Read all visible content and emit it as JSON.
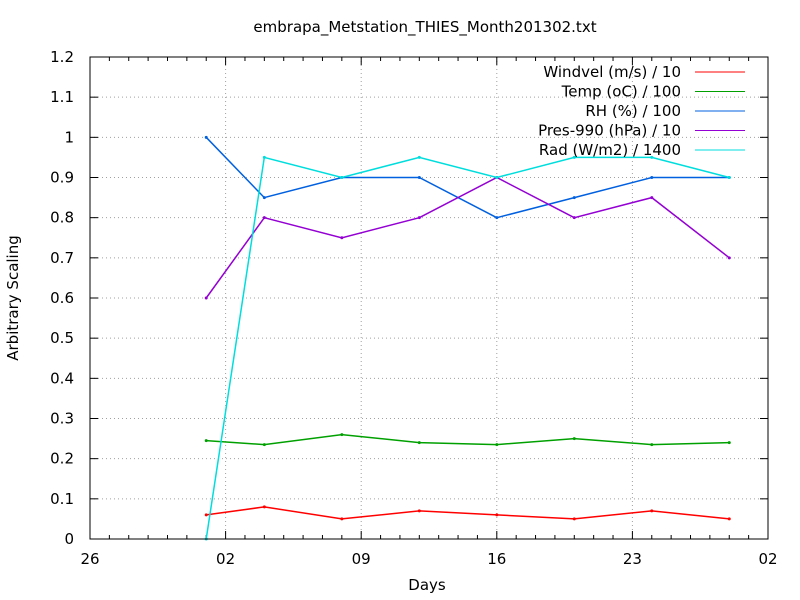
{
  "chart_data": {
    "type": "line",
    "title": "embrapa_Metstation_THIES_Month201302.txt",
    "xlabel": "Days",
    "ylabel": "Arbitrary Scaling",
    "xlim": [
      "2013-01-26",
      "2013-03-02"
    ],
    "ylim": [
      0,
      1.2
    ],
    "x_ticks": [
      "26",
      "02",
      "09",
      "16",
      "23",
      "02"
    ],
    "y_ticks": [
      "0",
      "0.1",
      "0.2",
      "0.3",
      "0.4",
      "0.5",
      "0.6",
      "0.7",
      "0.8",
      "0.9",
      "1",
      "1.1",
      "1.2"
    ],
    "grid": true,
    "legend_position": "top-right",
    "series": [
      {
        "name": "Windvel (m/s) / 10",
        "color": "#ff0000",
        "x": [
          "2013-02-01",
          "2013-02-04",
          "2013-02-08",
          "2013-02-12",
          "2013-02-16",
          "2013-02-20",
          "2013-02-24",
          "2013-02-28"
        ],
        "values": [
          0.06,
          0.08,
          0.05,
          0.07,
          0.06,
          0.05,
          0.07,
          0.05
        ]
      },
      {
        "name": "Temp (oC) / 100",
        "color": "#00a000",
        "x": [
          "2013-02-01",
          "2013-02-04",
          "2013-02-08",
          "2013-02-12",
          "2013-02-16",
          "2013-02-20",
          "2013-02-24",
          "2013-02-28"
        ],
        "values": [
          0.245,
          0.235,
          0.26,
          0.24,
          0.235,
          0.25,
          0.235,
          0.24
        ]
      },
      {
        "name": "RH (%) / 100",
        "color": "#0060e0",
        "x": [
          "2013-02-01",
          "2013-02-04",
          "2013-02-08",
          "2013-02-12",
          "2013-02-16",
          "2013-02-20",
          "2013-02-24",
          "2013-02-28"
        ],
        "values": [
          1.0,
          0.85,
          0.9,
          0.9,
          0.8,
          0.85,
          0.9,
          0.9
        ]
      },
      {
        "name": "Pres-990 (hPa) / 10",
        "color": "#9400d3",
        "x": [
          "2013-02-01",
          "2013-02-04",
          "2013-02-08",
          "2013-02-12",
          "2013-02-16",
          "2013-02-20",
          "2013-02-24",
          "2013-02-28"
        ],
        "values": [
          0.6,
          0.8,
          0.75,
          0.8,
          0.9,
          0.8,
          0.85,
          0.7
        ]
      },
      {
        "name": "Rad (W/m2) / 1400",
        "color": "#00dddd",
        "x": [
          "2013-02-01",
          "2013-02-04",
          "2013-02-08",
          "2013-02-12",
          "2013-02-16",
          "2013-02-20",
          "2013-02-24",
          "2013-02-28"
        ],
        "values": [
          0.0,
          0.95,
          0.9,
          0.95,
          0.9,
          0.95,
          0.95,
          0.9
        ]
      }
    ]
  }
}
